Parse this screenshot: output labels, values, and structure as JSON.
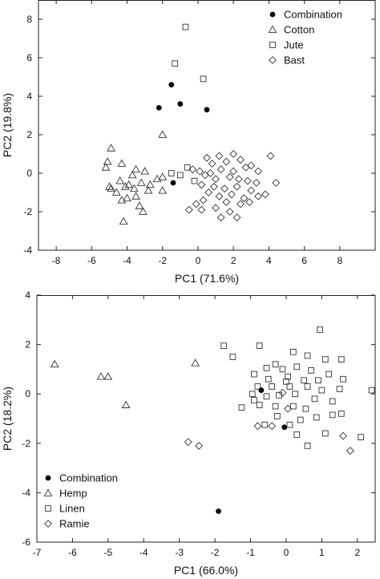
{
  "chart_data": [
    {
      "type": "scatter",
      "title": "",
      "xlabel": "PC1 (71.6%)",
      "ylabel": "PC2 (19.8%)",
      "xlim": [
        -9,
        10
      ],
      "ylim": [
        -4,
        9
      ],
      "xticks": [
        -8,
        -6,
        -4,
        -2,
        0,
        2,
        4,
        6,
        8
      ],
      "yticks": [
        -4,
        -2,
        0,
        2,
        4,
        6,
        8
      ],
      "legend_position": "top-right",
      "series": [
        {
          "name": "Combination",
          "marker": "circle-filled",
          "points": [
            [
              -1.5,
              4.6
            ],
            [
              -1.0,
              3.6
            ],
            [
              -2.2,
              3.4
            ],
            [
              0.5,
              3.3
            ],
            [
              -1.4,
              -0.5
            ]
          ]
        },
        {
          "name": "Cotton",
          "marker": "triangle",
          "points": [
            [
              -2.0,
              2.0
            ],
            [
              -4.9,
              1.3
            ],
            [
              -5.1,
              0.6
            ],
            [
              -5.2,
              0.3
            ],
            [
              -4.3,
              0.5
            ],
            [
              -3.5,
              0.2
            ],
            [
              -3.0,
              0.1
            ],
            [
              -2.0,
              -0.2
            ],
            [
              -2.3,
              -0.3
            ],
            [
              -4.4,
              -0.4
            ],
            [
              -3.2,
              -0.5
            ],
            [
              -3.9,
              -0.6
            ],
            [
              -4.1,
              -0.7
            ],
            [
              -3.6,
              -0.8
            ],
            [
              -2.8,
              -0.9
            ],
            [
              -4.9,
              -0.8
            ],
            [
              -5.0,
              -0.7
            ],
            [
              -4.0,
              -1.3
            ],
            [
              -3.3,
              -1.7
            ],
            [
              -4.3,
              -1.4
            ],
            [
              -3.1,
              -2.0
            ],
            [
              -4.2,
              -2.5
            ],
            [
              -3.7,
              -0.1
            ],
            [
              -2.7,
              -0.6
            ],
            [
              -2.0,
              -0.9
            ],
            [
              -4.6,
              -1.0
            ],
            [
              -3.5,
              -1.2
            ]
          ]
        },
        {
          "name": "Jute",
          "marker": "square",
          "points": [
            [
              -0.7,
              7.6
            ],
            [
              -1.3,
              5.7
            ],
            [
              0.3,
              4.9
            ],
            [
              -0.6,
              0.3
            ],
            [
              -1.0,
              -0.1
            ],
            [
              -0.2,
              -0.4
            ],
            [
              -1.5,
              0.0
            ]
          ]
        },
        {
          "name": "Bast",
          "marker": "diamond",
          "points": [
            [
              4.1,
              0.9
            ],
            [
              2.0,
              1.0
            ],
            [
              1.2,
              0.9
            ],
            [
              0.5,
              0.8
            ],
            [
              0.8,
              0.5
            ],
            [
              1.6,
              0.6
            ],
            [
              2.4,
              0.7
            ],
            [
              3.0,
              0.4
            ],
            [
              2.7,
              0.3
            ],
            [
              1.3,
              0.2
            ],
            [
              0.7,
              0.0
            ],
            [
              0.1,
              0.1
            ],
            [
              -0.3,
              0.2
            ],
            [
              2.0,
              0.1
            ],
            [
              3.4,
              0.1
            ],
            [
              0.4,
              -0.1
            ],
            [
              1.0,
              -0.3
            ],
            [
              1.8,
              -0.2
            ],
            [
              2.3,
              -0.3
            ],
            [
              2.8,
              -0.4
            ],
            [
              3.3,
              -0.5
            ],
            [
              4.4,
              -0.5
            ],
            [
              0.2,
              -0.6
            ],
            [
              0.9,
              -0.7
            ],
            [
              1.5,
              -0.8
            ],
            [
              2.2,
              -0.7
            ],
            [
              3.0,
              -0.9
            ],
            [
              3.8,
              -1.1
            ],
            [
              3.4,
              -1.2
            ],
            [
              0.6,
              -1.0
            ],
            [
              1.2,
              -1.2
            ],
            [
              1.9,
              -1.1
            ],
            [
              2.6,
              -1.3
            ],
            [
              0.3,
              -1.4
            ],
            [
              1.6,
              -1.5
            ],
            [
              2.4,
              -1.6
            ],
            [
              -0.5,
              -1.9
            ],
            [
              1.0,
              -1.8
            ],
            [
              1.8,
              -2.0
            ],
            [
              -0.1,
              -1.6
            ],
            [
              2.9,
              -1.5
            ],
            [
              1.3,
              -2.3
            ],
            [
              2.2,
              -2.3
            ],
            [
              0.2,
              -1.9
            ]
          ]
        }
      ]
    },
    {
      "type": "scatter",
      "title": "",
      "xlabel": "PC1 (66.0%)",
      "ylabel": "PC2 (18.2%)",
      "xlim": [
        -7,
        2.5
      ],
      "ylim": [
        -6,
        4
      ],
      "xticks": [
        -7,
        -6,
        -5,
        -4,
        -3,
        -2,
        -1,
        0,
        1,
        2
      ],
      "yticks": [
        -6,
        -4,
        -2,
        0,
        2,
        4
      ],
      "legend_position": "bottom-left",
      "series": [
        {
          "name": "Combination",
          "marker": "circle-filled",
          "points": [
            [
              -1.9,
              -4.75
            ],
            [
              -0.05,
              -1.35
            ],
            [
              -0.7,
              0.15
            ]
          ]
        },
        {
          "name": "Hemp",
          "marker": "triangle",
          "points": [
            [
              -6.5,
              1.2
            ],
            [
              -5.2,
              0.7
            ],
            [
              -5.0,
              0.7
            ],
            [
              -4.5,
              -0.45
            ],
            [
              -2.55,
              1.25
            ]
          ]
        },
        {
          "name": "Linen",
          "marker": "square",
          "points": [
            [
              -1.75,
              1.95
            ],
            [
              -1.5,
              1.5
            ],
            [
              -0.75,
              1.95
            ],
            [
              0.2,
              1.7
            ],
            [
              0.6,
              1.55
            ],
            [
              0.95,
              2.6
            ],
            [
              1.1,
              1.4
            ],
            [
              1.55,
              1.4
            ],
            [
              -0.3,
              1.2
            ],
            [
              -0.1,
              1.0
            ],
            [
              -0.55,
              1.05
            ],
            [
              0.3,
              1.1
            ],
            [
              0.7,
              0.95
            ],
            [
              1.2,
              0.8
            ],
            [
              -0.9,
              0.8
            ],
            [
              -0.5,
              0.6
            ],
            [
              0.0,
              0.5
            ],
            [
              0.5,
              0.55
            ],
            [
              0.9,
              0.55
            ],
            [
              1.6,
              0.6
            ],
            [
              -0.8,
              0.3
            ],
            [
              -0.4,
              0.3
            ],
            [
              0.1,
              0.3
            ],
            [
              0.6,
              0.3
            ],
            [
              1.0,
              0.15
            ],
            [
              1.5,
              0.2
            ],
            [
              -0.95,
              0.0
            ],
            [
              -0.55,
              -0.1
            ],
            [
              -0.2,
              -0.05
            ],
            [
              0.25,
              0.0
            ],
            [
              0.8,
              -0.2
            ],
            [
              1.3,
              -0.3
            ],
            [
              2.4,
              0.15
            ],
            [
              -1.25,
              -0.55
            ],
            [
              -0.75,
              -0.45
            ],
            [
              -0.3,
              -0.5
            ],
            [
              0.2,
              -0.5
            ],
            [
              0.55,
              -0.6
            ],
            [
              1.3,
              -0.85
            ],
            [
              -0.25,
              -0.9
            ],
            [
              0.4,
              -1.05
            ],
            [
              0.85,
              -0.95
            ],
            [
              -0.6,
              -1.25
            ],
            [
              0.1,
              -1.25
            ],
            [
              1.55,
              -0.8
            ],
            [
              0.3,
              -1.65
            ],
            [
              1.1,
              -1.6
            ],
            [
              0.6,
              -2.1
            ],
            [
              2.1,
              -1.75
            ],
            [
              -0.9,
              -0.25
            ],
            [
              0.05,
              0.7
            ]
          ]
        },
        {
          "name": "Ramie",
          "marker": "diamond",
          "points": [
            [
              -2.75,
              -1.95
            ],
            [
              -2.45,
              -2.1
            ],
            [
              -0.8,
              -1.3
            ],
            [
              -0.4,
              -1.3
            ],
            [
              0.05,
              -0.6
            ],
            [
              1.6,
              -1.7
            ],
            [
              1.8,
              -2.3
            ],
            [
              -0.1,
              0.05
            ]
          ]
        }
      ]
    }
  ]
}
